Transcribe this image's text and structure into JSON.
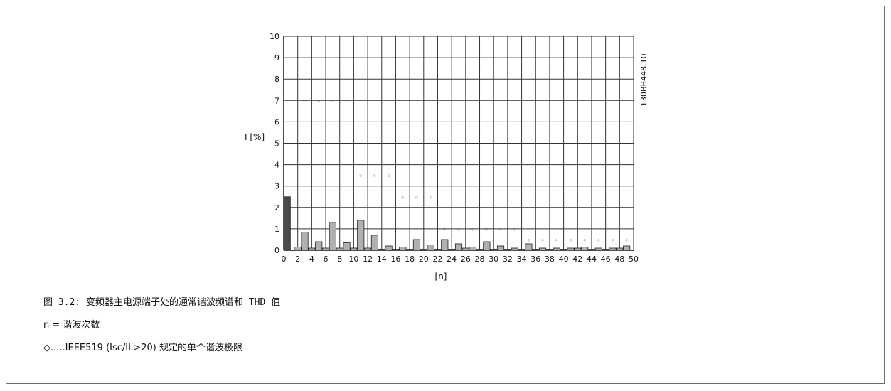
{
  "chart_data": {
    "type": "bar",
    "ylabel": "I [%]",
    "xlabel": "[n]",
    "ylim": [
      0,
      10
    ],
    "xlim": [
      0,
      50
    ],
    "x_ticks": [
      0,
      2,
      4,
      6,
      8,
      10,
      12,
      14,
      16,
      18,
      20,
      22,
      24,
      26,
      28,
      30,
      32,
      34,
      36,
      38,
      40,
      42,
      44,
      46,
      48,
      50
    ],
    "y_ticks": [
      0,
      1,
      2,
      3,
      4,
      5,
      6,
      7,
      8,
      9,
      10
    ],
    "grid": true,
    "figure_id": "130BB448.10",
    "series": [
      {
        "role": "harmonic_current",
        "x": [
          0,
          2,
          3,
          4,
          5,
          6,
          7,
          8,
          9,
          10,
          11,
          12,
          13,
          14,
          15,
          16,
          17,
          18,
          19,
          20,
          21,
          22,
          23,
          24,
          25,
          26,
          27,
          28,
          29,
          30,
          31,
          32,
          33,
          34,
          35,
          36,
          37,
          38,
          39,
          40,
          41,
          42,
          43,
          44,
          45,
          46,
          47,
          48,
          49
        ],
        "values": [
          2.5,
          0.15,
          0.85,
          0.1,
          0.4,
          0.1,
          1.3,
          0.1,
          0.35,
          0.1,
          1.4,
          0.1,
          0.7,
          0.05,
          0.2,
          0.05,
          0.15,
          0.05,
          0.5,
          0.05,
          0.25,
          0.05,
          0.5,
          0.05,
          0.3,
          0.1,
          0.15,
          0.05,
          0.4,
          0.05,
          0.2,
          0.05,
          0.1,
          0.05,
          0.3,
          0.05,
          0.1,
          0.05,
          0.1,
          0.05,
          0.1,
          0.1,
          0.15,
          0.05,
          0.1,
          0.05,
          0.1,
          0.1,
          0.2
        ],
        "colors": {
          "fundamental": "#4a4a4a",
          "harmonic": "#b0b0b0",
          "edge": "#222222"
        }
      },
      {
        "role": "ieee519_limit",
        "marker": "◇",
        "x": [
          3,
          5,
          7,
          9,
          11,
          13,
          15,
          17,
          19,
          21,
          23,
          25,
          27,
          29,
          31,
          33,
          35,
          37,
          39,
          41,
          43,
          45,
          47,
          49
        ],
        "values": [
          7,
          7,
          7,
          7,
          3.5,
          3.5,
          3.5,
          2.5,
          2.5,
          2.5,
          1,
          1,
          1,
          1,
          1,
          1,
          0.5,
          0.5,
          0.5,
          0.5,
          0.5,
          0.5,
          0.5,
          0.5
        ]
      }
    ]
  },
  "captions": {
    "title": "图 3.2: 变频器主电源端子处的通常谐波频谱和 THD 值",
    "n_def": "n = 谐波次数",
    "limit_def": "◇.....IEEE519 (Isc/IL>20) 规定的单个谐波极限"
  }
}
